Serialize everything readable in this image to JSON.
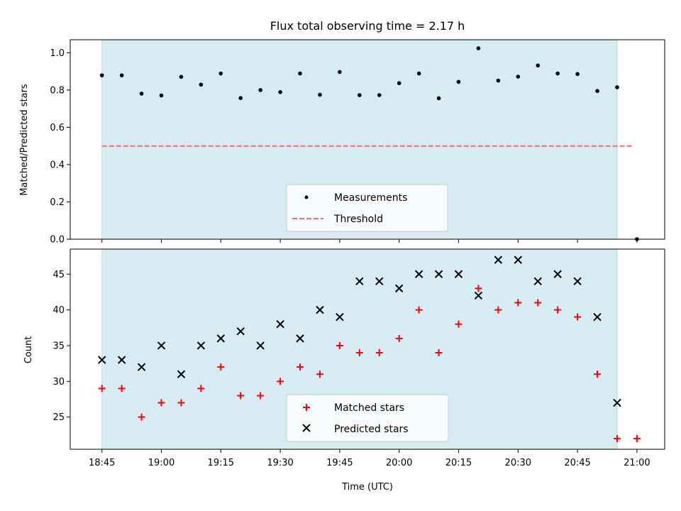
{
  "title": "Flux total observing time = 2.17 h",
  "chart_data": [
    {
      "type": "scatter",
      "panel": "top",
      "ylabel": "Matched/Predicted stars",
      "ylim": [
        0,
        1.07
      ],
      "yticks": [
        0.0,
        0.2,
        0.4,
        0.6,
        0.8,
        1.0
      ],
      "ytick_labels": [
        "0.0",
        "0.2",
        "0.4",
        "0.6",
        "0.8",
        "1.0"
      ],
      "shaded_span": [
        "18:45",
        "20:55"
      ],
      "series": [
        {
          "name": "Measurements",
          "color": "#000000",
          "marker": "dot",
          "x": [
            "18:45",
            "18:50",
            "18:55",
            "19:00",
            "19:05",
            "19:10",
            "19:15",
            "19:20",
            "19:25",
            "19:30",
            "19:35",
            "19:40",
            "19:45",
            "19:50",
            "19:55",
            "20:00",
            "20:05",
            "20:10",
            "20:15",
            "20:20",
            "20:25",
            "20:30",
            "20:35",
            "20:40",
            "20:45",
            "20:50",
            "20:55",
            "21:00"
          ],
          "y": [
            0.879,
            0.879,
            0.781,
            0.771,
            0.871,
            0.829,
            0.889,
            0.757,
            0.8,
            0.789,
            0.889,
            0.775,
            0.897,
            0.773,
            0.773,
            0.837,
            0.889,
            0.756,
            0.844,
            1.024,
            0.851,
            0.872,
            0.932,
            0.889,
            0.886,
            0.795,
            0.815,
            0.0
          ]
        },
        {
          "name": "Threshold",
          "color": "#f07070",
          "style": "dashed",
          "x": [
            "18:45",
            "21:00"
          ],
          "y": [
            0.5,
            0.5
          ]
        }
      ],
      "legend_position": "lower-center"
    },
    {
      "type": "scatter",
      "panel": "bottom",
      "xlabel": "Time (UTC)",
      "ylabel": "Count",
      "ylim": [
        20.5,
        48.5
      ],
      "yticks": [
        25,
        30,
        35,
        40,
        45
      ],
      "ytick_labels": [
        "25",
        "30",
        "35",
        "40",
        "45"
      ],
      "xtick_labels": [
        "18:45",
        "19:00",
        "19:15",
        "19:30",
        "19:45",
        "20:00",
        "20:15",
        "20:30",
        "20:45",
        "21:00"
      ],
      "xlim": [
        "18:37",
        "21:07"
      ],
      "shaded_span": [
        "18:45",
        "20:55"
      ],
      "series": [
        {
          "name": "Matched stars",
          "color": "#ff0000",
          "marker": "plus",
          "x": [
            "18:45",
            "18:50",
            "18:55",
            "19:00",
            "19:05",
            "19:10",
            "19:15",
            "19:20",
            "19:25",
            "19:30",
            "19:35",
            "19:40",
            "19:45",
            "19:50",
            "19:55",
            "20:00",
            "20:05",
            "20:10",
            "20:15",
            "20:20",
            "20:25",
            "20:30",
            "20:35",
            "20:40",
            "20:45",
            "20:50",
            "20:55",
            "21:00"
          ],
          "y": [
            29,
            29,
            25,
            27,
            27,
            29,
            32,
            28,
            28,
            30,
            32,
            31,
            35,
            34,
            34,
            36,
            40,
            34,
            38,
            43,
            40,
            41,
            41,
            40,
            39,
            31,
            22,
            22
          ]
        },
        {
          "name": "Predicted stars",
          "color": "#000000",
          "marker": "x",
          "x": [
            "18:45",
            "18:50",
            "18:55",
            "19:00",
            "19:05",
            "19:10",
            "19:15",
            "19:20",
            "19:25",
            "19:30",
            "19:35",
            "19:40",
            "19:45",
            "19:50",
            "19:55",
            "20:00",
            "20:05",
            "20:10",
            "20:15",
            "20:20",
            "20:25",
            "20:30",
            "20:35",
            "20:40",
            "20:45",
            "20:50",
            "20:55"
          ],
          "y": [
            33,
            33,
            32,
            35,
            31,
            35,
            36,
            37,
            35,
            38,
            36,
            40,
            39,
            44,
            44,
            43,
            45,
            45,
            45,
            42,
            47,
            47,
            44,
            45,
            44,
            39,
            27
          ]
        }
      ],
      "legend_position": "lower-center"
    }
  ],
  "colors": {
    "shade": "#add8e6",
    "shade_edge": "#8fd0d8"
  }
}
